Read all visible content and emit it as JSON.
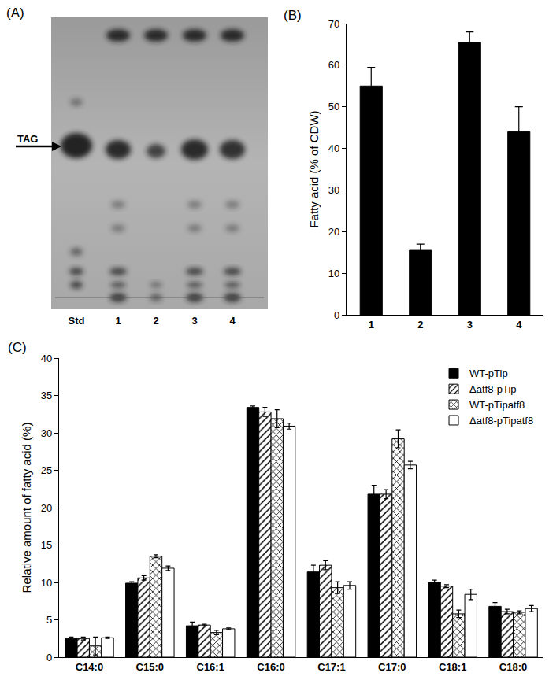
{
  "tlc_panel": {
    "label": "(A)",
    "spot_label": "TAG",
    "lanes": [
      "Std",
      "1",
      "2",
      "3",
      "4"
    ]
  },
  "chart_data": [
    {
      "type": "bar",
      "title": "(B)",
      "y_label": "Fatty acid (% of CDW)",
      "categories": [
        "1",
        "2",
        "3",
        "4"
      ],
      "values": [
        55,
        15.5,
        65.5,
        44
      ],
      "errors": [
        4.5,
        1.5,
        2.5,
        6
      ],
      "color": "#000000",
      "ylim": [
        0,
        70
      ],
      "yticks": [
        0,
        10,
        20,
        30,
        40,
        50,
        60,
        70
      ],
      "grid": false
    },
    {
      "type": "bar",
      "title": "(C)",
      "y_label": "Relative amount of fatty acid (%)",
      "categories": [
        "C14:0",
        "C15:0",
        "C16:1",
        "C16:0",
        "C17:1",
        "C17:0",
        "C18:1",
        "C18:0"
      ],
      "series": [
        {
          "name": "WT-pTip",
          "color": "#000000",
          "marker": "solid",
          "values": [
            2.5,
            9.9,
            4.2,
            33.4,
            11.4,
            21.8,
            10.0,
            6.8
          ],
          "errors": [
            0.2,
            0.2,
            0.5,
            0.2,
            0.9,
            1.2,
            0.3,
            0.5
          ]
        },
        {
          "name": "Δatf8-pTip",
          "color": "#ffffff",
          "marker": "hatch",
          "values": [
            2.5,
            10.6,
            4.3,
            32.8,
            12.3,
            21.8,
            9.5,
            6.1
          ],
          "errors": [
            0.2,
            0.3,
            0.1,
            0.6,
            0.6,
            0.6,
            0.2,
            0.3
          ]
        },
        {
          "name": "WT-pTipatf8",
          "color": "#ffffff",
          "marker": "crosshatch",
          "values": [
            1.5,
            13.5,
            3.3,
            31.9,
            9.3,
            29.2,
            5.8,
            6.0
          ],
          "errors": [
            1.2,
            0.2,
            0.3,
            1.2,
            0.8,
            1.2,
            0.5,
            0.2
          ]
        },
        {
          "name": "Δatf8-pTipatf8",
          "color": "#ffffff",
          "marker": "open",
          "values": [
            2.6,
            11.9,
            3.8,
            30.9,
            9.6,
            25.7,
            8.4,
            6.5
          ],
          "errors": [
            0.1,
            0.3,
            0.1,
            0.4,
            0.5,
            0.5,
            0.7,
            0.4
          ]
        }
      ],
      "ylim": [
        0,
        40
      ],
      "yticks": [
        0,
        5,
        10,
        15,
        20,
        25,
        30,
        35,
        40
      ],
      "grid": false,
      "legend": "top right"
    }
  ]
}
